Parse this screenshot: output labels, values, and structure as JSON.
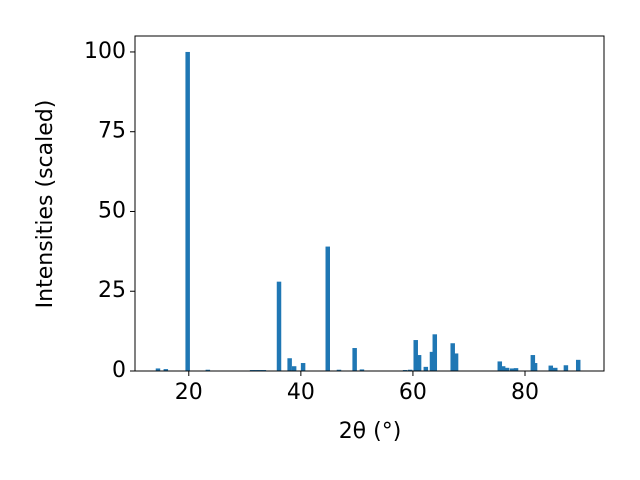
{
  "chart_data": {
    "type": "bar",
    "xlabel": "2θ (°)",
    "ylabel": "Intensities (scaled)",
    "x": [
      14.5,
      15.9,
      19.8,
      23.4,
      31.3,
      32.0,
      32.7,
      33.4,
      36.1,
      38.0,
      38.8,
      40.4,
      44.8,
      46.8,
      49.6,
      50.9,
      58.6,
      59.5,
      60.5,
      61.1,
      62.3,
      63.4,
      63.9,
      67.1,
      67.7,
      75.5,
      76.1,
      76.8,
      77.7,
      78.4,
      81.4,
      81.8,
      84.6,
      85.4,
      87.3,
      89.5
    ],
    "values": [
      0.8,
      0.6,
      100,
      0.4,
      0.3,
      0.3,
      0.3,
      0.3,
      28,
      4,
      1.5,
      2.5,
      39,
      0.4,
      7.2,
      0.5,
      0.3,
      0.4,
      9.7,
      5,
      1.3,
      6,
      11.5,
      8.7,
      5.5,
      3,
      1.5,
      1,
      0.8,
      0.9,
      5,
      2.5,
      1.7,
      1,
      1.8,
      3.5
    ],
    "color": "#1f77b4",
    "xlim": [
      10.4,
      94.1
    ],
    "ylim": [
      0,
      105
    ],
    "xticks": [
      20,
      40,
      60,
      80
    ],
    "yticks": [
      0,
      25,
      50,
      75,
      100
    ]
  }
}
